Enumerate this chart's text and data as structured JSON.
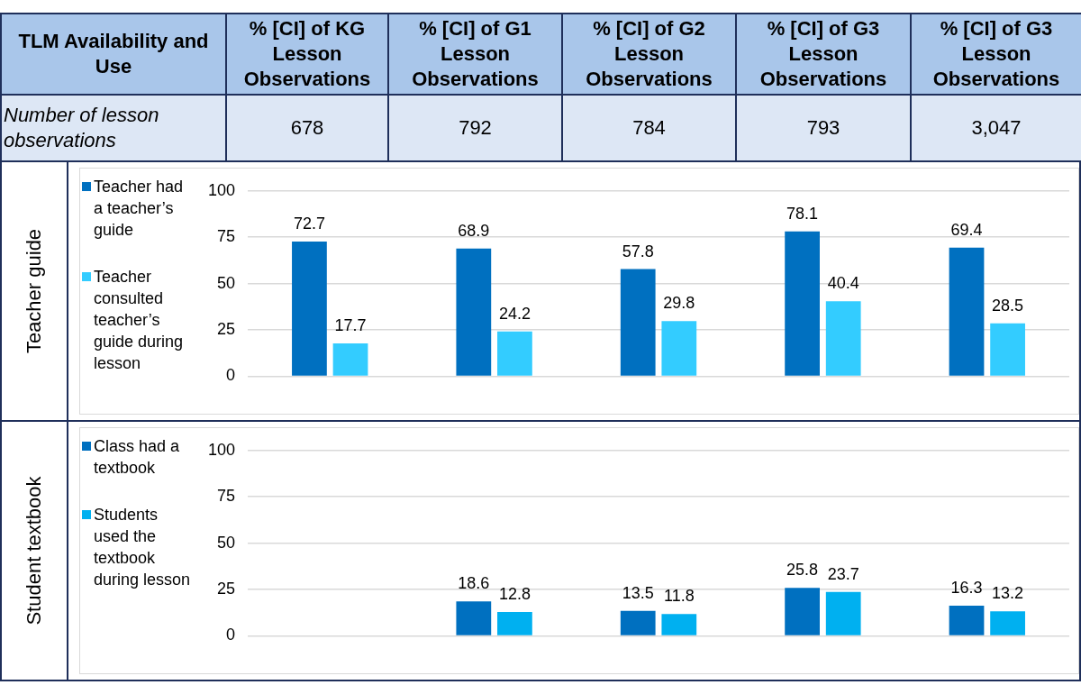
{
  "chart_data": [
    {
      "type": "other",
      "title": "TLM Availability and Use",
      "categories": [
        "% [CI] of KG Lesson Observations",
        "% [CI] of G1 Lesson Observations",
        "% [CI] of G2 Lesson Observations",
        "% [CI] of G3 Lesson Observations",
        "% [CI] of G3 Lesson Observations"
      ],
      "annotations": [
        "Number of lesson observations",
        "678",
        "792",
        "784",
        "793",
        "3,047"
      ]
    },
    {
      "type": "bar",
      "ylabel": "Teacher  guide",
      "categories": [
        null,
        null,
        null,
        null,
        null
      ],
      "series": [
        {
          "name": "Teacher had a teacher’s guide",
          "color": "#0070c0",
          "values": [
            72.7,
            68.9,
            57.8,
            78.1,
            69.4
          ]
        },
        {
          "name": "Teacher consulted teacher’s guide during lesson",
          "color": "#33ccff",
          "values": [
            17.7,
            24.2,
            29.8,
            40.4,
            28.5
          ]
        }
      ],
      "ylim": [
        0,
        100
      ],
      "yticks": [
        0,
        25,
        50,
        75,
        100
      ],
      "grid": "y",
      "legend": "left",
      "data_labels": true
    },
    {
      "type": "bar",
      "ylabel": "Student textbook",
      "categories": [
        null,
        null,
        null,
        null,
        null
      ],
      "series": [
        {
          "name": "Class had a textbook",
          "color": "#0070c0",
          "values": [
            null,
            18.6,
            13.5,
            25.8,
            16.3
          ]
        },
        {
          "name": "Students used the textbook during lesson",
          "color": "#00b0f0",
          "values": [
            null,
            12.8,
            11.8,
            23.7,
            13.2
          ]
        }
      ],
      "ylim": [
        0,
        100
      ],
      "yticks": [
        0,
        25,
        50,
        75,
        100
      ],
      "grid": "y",
      "legend": "left",
      "data_labels": true
    }
  ]
}
